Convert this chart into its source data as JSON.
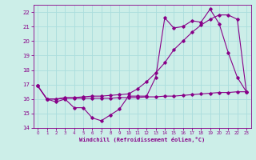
{
  "xlabel": "Windchill (Refroidissement éolien,°C)",
  "bg_color": "#cceee8",
  "grid_color": "#aadddd",
  "line_color": "#880088",
  "xlim": [
    -0.5,
    23.5
  ],
  "ylim": [
    14,
    22.5
  ],
  "yticks": [
    14,
    15,
    16,
    17,
    18,
    19,
    20,
    21,
    22
  ],
  "xticks": [
    0,
    1,
    2,
    3,
    4,
    5,
    6,
    7,
    8,
    9,
    10,
    11,
    12,
    13,
    14,
    15,
    16,
    17,
    18,
    19,
    20,
    21,
    22,
    23
  ],
  "series1_x": [
    0,
    1,
    2,
    3,
    4,
    5,
    6,
    7,
    8,
    9,
    10,
    11,
    12,
    13,
    14,
    15,
    16,
    17,
    18,
    19,
    20,
    21,
    22,
    23
  ],
  "series1_y": [
    16.9,
    16.0,
    15.8,
    16.0,
    15.4,
    15.4,
    14.7,
    14.5,
    14.9,
    15.3,
    16.2,
    16.2,
    16.2,
    17.5,
    21.6,
    20.9,
    21.0,
    21.4,
    21.3,
    22.2,
    21.2,
    19.2,
    17.5,
    16.5
  ],
  "series2_x": [
    0,
    1,
    2,
    3,
    4,
    5,
    6,
    7,
    8,
    9,
    10,
    11,
    12,
    13,
    14,
    15,
    16,
    17,
    18,
    19,
    20,
    21,
    22,
    23
  ],
  "series2_y": [
    16.9,
    16.0,
    16.0,
    16.05,
    16.05,
    16.05,
    16.05,
    16.05,
    16.05,
    16.1,
    16.1,
    16.1,
    16.15,
    16.15,
    16.2,
    16.2,
    16.25,
    16.3,
    16.35,
    16.4,
    16.45,
    16.45,
    16.5,
    16.5
  ],
  "series3_x": [
    0,
    1,
    2,
    3,
    4,
    5,
    6,
    7,
    8,
    9,
    10,
    11,
    12,
    13,
    14,
    15,
    16,
    17,
    18,
    19,
    20,
    21,
    22,
    23
  ],
  "series3_y": [
    16.9,
    16.0,
    16.0,
    16.1,
    16.1,
    16.15,
    16.2,
    16.2,
    16.25,
    16.3,
    16.35,
    16.7,
    17.2,
    17.8,
    18.5,
    19.4,
    20.0,
    20.6,
    21.1,
    21.5,
    21.8,
    21.8,
    21.5,
    16.5
  ]
}
